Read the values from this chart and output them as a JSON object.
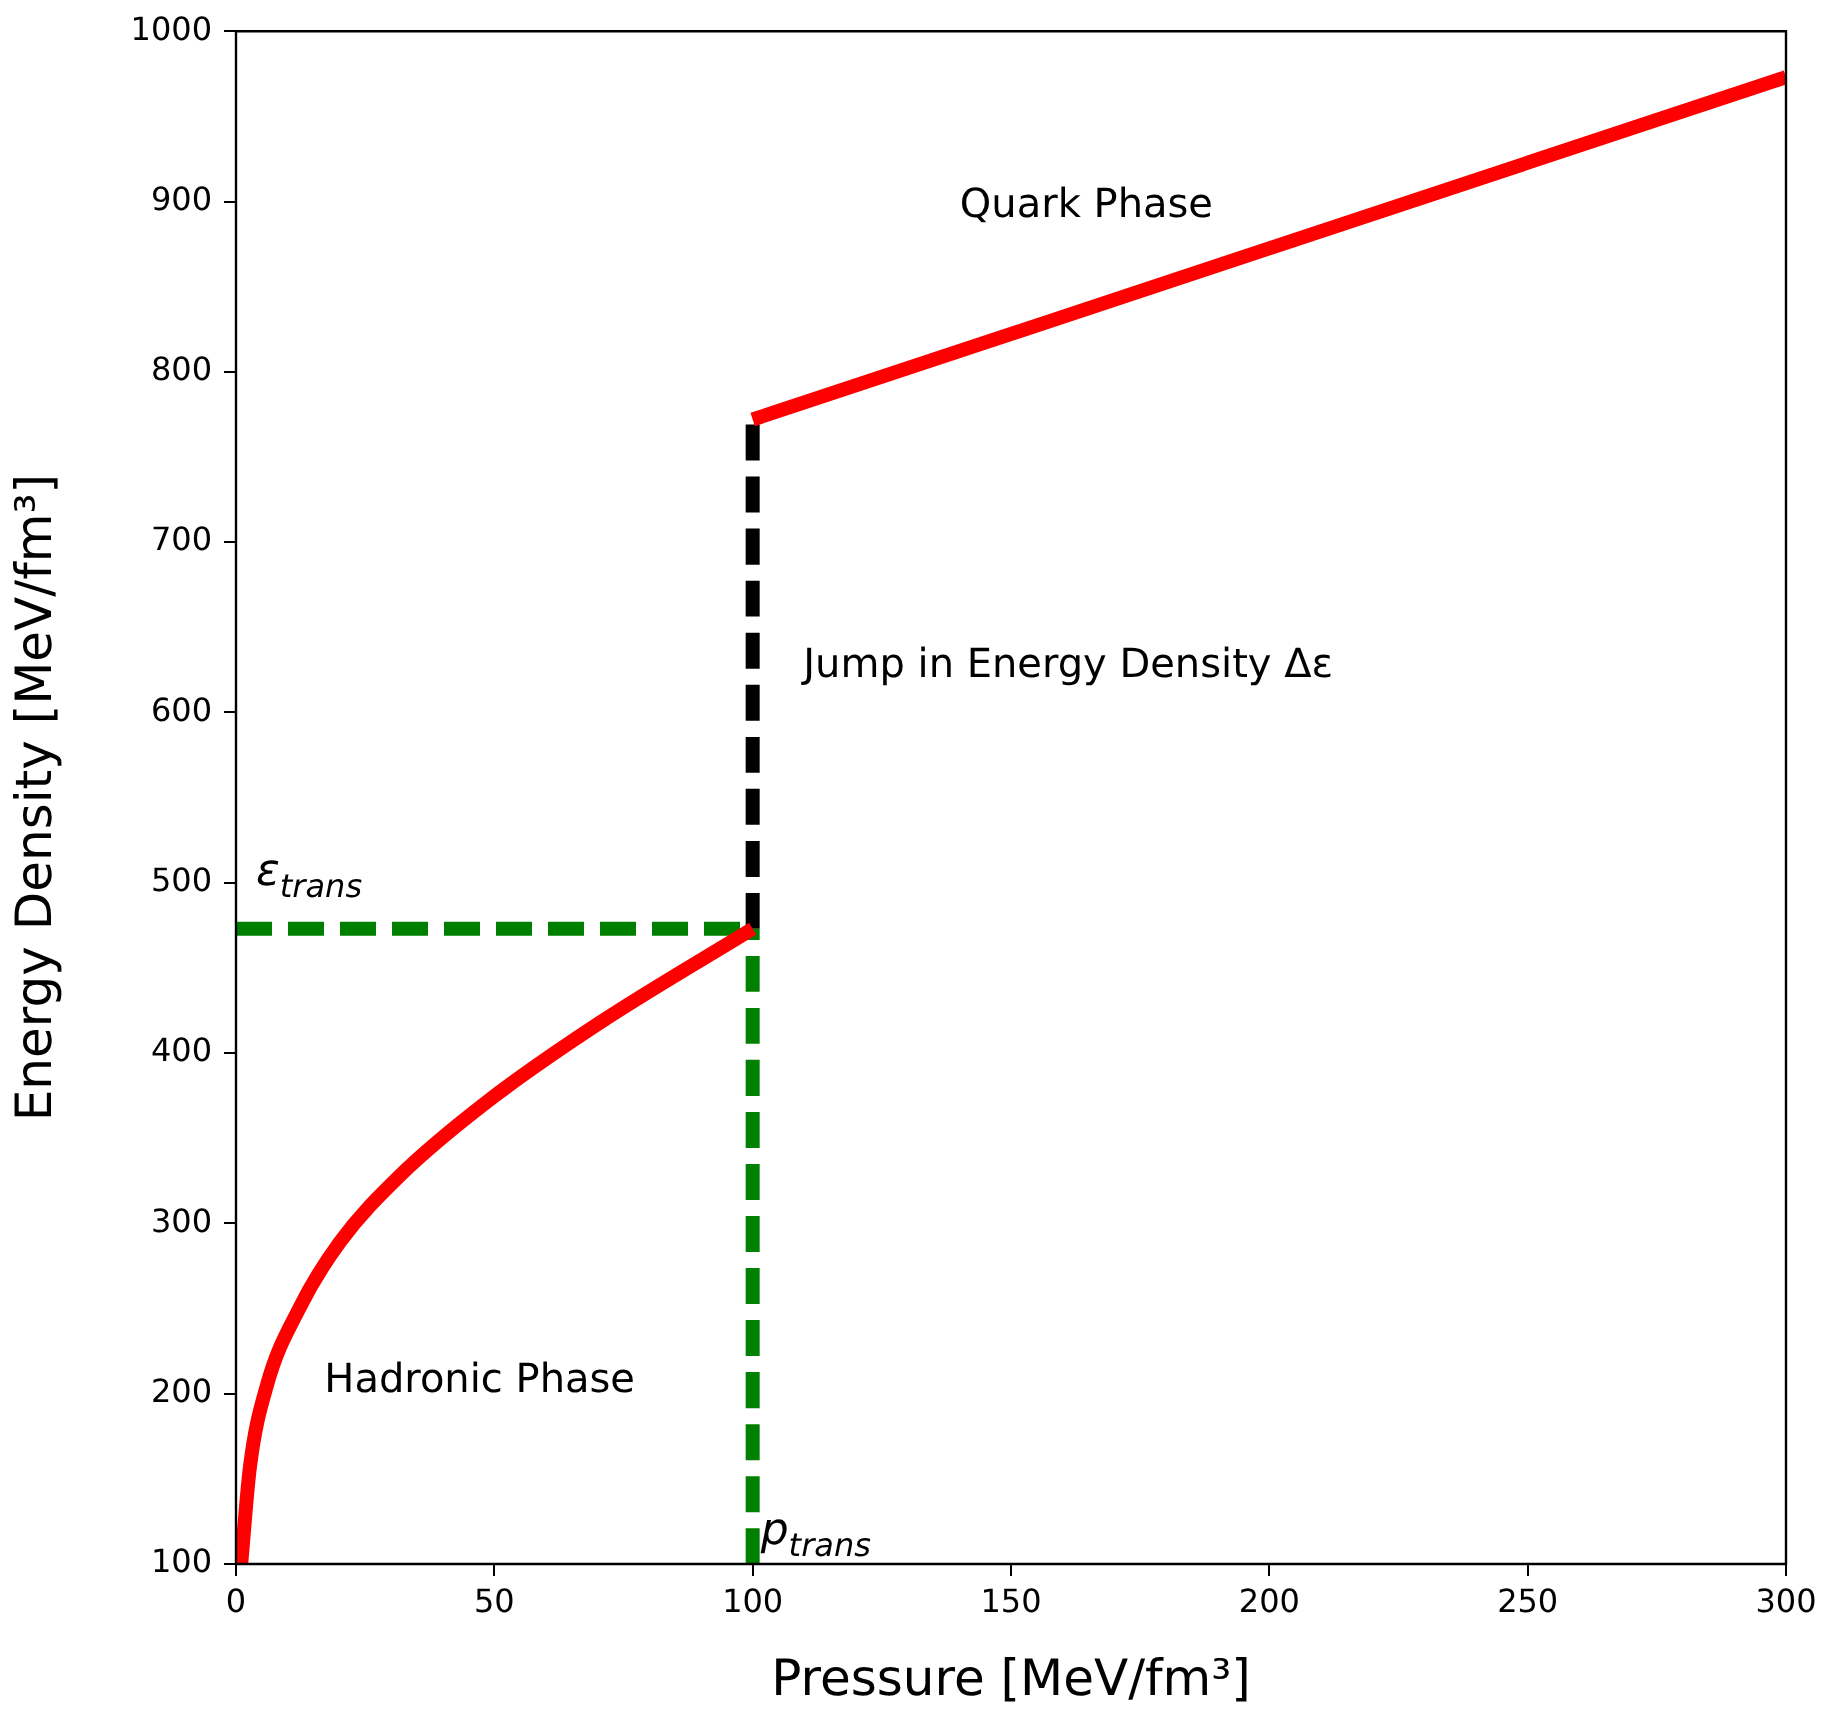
{
  "chart_data": {
    "type": "line",
    "xlabel": "Pressure [MeV/fm³]",
    "ylabel": "Energy Density [MeV/fm³]",
    "xlim": [
      0,
      300
    ],
    "xticks": [
      0,
      50,
      100,
      150,
      200,
      250,
      300
    ],
    "ylim": [
      100,
      1000
    ],
    "yticks": [
      100,
      200,
      300,
      400,
      500,
      600,
      700,
      800,
      900,
      1000
    ],
    "grid": false,
    "legend": false,
    "marker": "none",
    "series": [
      {
        "color": "#ff0000",
        "line_style": "solid",
        "x": [
          1,
          2.7,
          5.9,
          12.4,
          20.1,
          31.7,
          48.4,
          70.5,
          100
        ],
        "values": [
          100,
          157,
          204,
          251,
          289,
          328,
          371,
          418,
          473
        ]
      },
      {
        "color": "#ff0000",
        "line_style": "solid",
        "x": [
          100,
          300
        ],
        "values": [
          772,
          973
        ]
      },
      {
        "color": "#008000",
        "line_style": "dashed",
        "x": [
          0,
          100
        ],
        "values": [
          473,
          473
        ]
      },
      {
        "color": "#008000",
        "line_style": "dashed",
        "x": [
          100,
          100
        ],
        "values": [
          100,
          473
        ]
      },
      {
        "color": "#000000",
        "line_style": "dashed",
        "x": [
          100,
          100
        ],
        "values": [
          473,
          772
        ]
      }
    ],
    "annotations": [
      "Quark Phase",
      "Jump in Energy Density Δε",
      "Hadronic Phase",
      {
        "text": "ε$_{trans}$",
        "x": 0,
        "y": 473
      },
      {
        "text": "p$_{trans}$",
        "x": 100,
        "y": 112
      }
    ]
  }
}
